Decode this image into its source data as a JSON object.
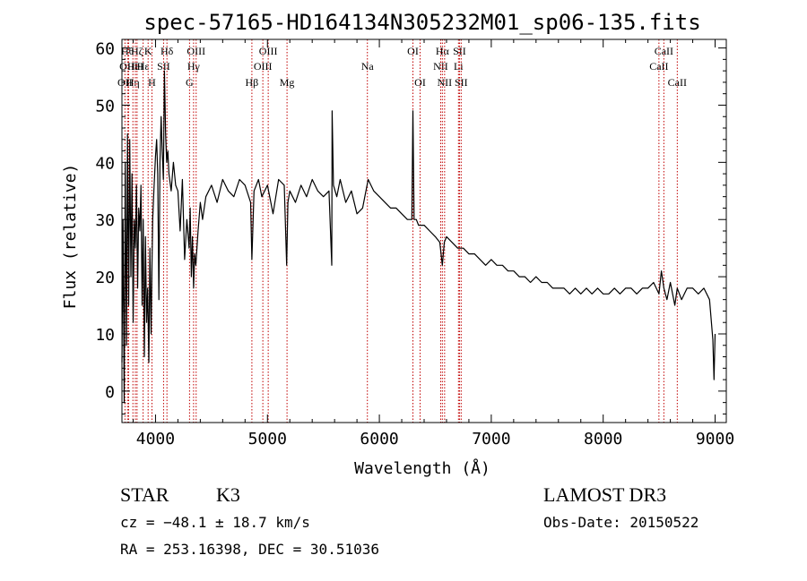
{
  "chart_data": {
    "type": "line",
    "title": "spec-57165-HD164134N305232M01_sp06-135.fits",
    "xlabel": "Wavelength (Å)",
    "ylabel": "Flux (relative)",
    "xlim": [
      3700,
      9100
    ],
    "ylim": [
      -5.5,
      61.5
    ],
    "x_ticks": [
      4000,
      5000,
      6000,
      7000,
      8000,
      9000
    ],
    "x_tick_labels": [
      "4000",
      "5000",
      "6000",
      "7000",
      "8000",
      "9000"
    ],
    "y_ticks": [
      0,
      10,
      20,
      30,
      40,
      50,
      60
    ],
    "y_tick_labels": [
      "0",
      "10",
      "20",
      "30",
      "40",
      "50",
      "60"
    ],
    "grid": false,
    "series": [
      {
        "name": "spectrum",
        "color": "#000000",
        "x": [
          3700,
          3710,
          3720,
          3730,
          3740,
          3750,
          3760,
          3770,
          3780,
          3790,
          3800,
          3810,
          3820,
          3830,
          3840,
          3850,
          3860,
          3870,
          3880,
          3890,
          3900,
          3910,
          3920,
          3930,
          3940,
          3950,
          3960,
          3968,
          3975,
          3985,
          4000,
          4010,
          4020,
          4030,
          4040,
          4050,
          4060,
          4070,
          4080,
          4090,
          4100,
          4110,
          4120,
          4140,
          4160,
          4180,
          4200,
          4220,
          4240,
          4260,
          4280,
          4300,
          4310,
          4320,
          4330,
          4340,
          4350,
          4360,
          4380,
          4400,
          4420,
          4450,
          4500,
          4550,
          4600,
          4650,
          4700,
          4750,
          4800,
          4850,
          4861,
          4880,
          4920,
          4950,
          5000,
          5050,
          5100,
          5150,
          5172,
          5183,
          5200,
          5250,
          5300,
          5350,
          5400,
          5450,
          5500,
          5550,
          5575,
          5578,
          5590,
          5620,
          5650,
          5700,
          5750,
          5800,
          5850,
          5900,
          5950,
          6000,
          6050,
          6100,
          6150,
          6200,
          6250,
          6290,
          6300,
          6310,
          6330,
          6350,
          6400,
          6450,
          6500,
          6540,
          6563,
          6580,
          6600,
          6650,
          6700,
          6750,
          6800,
          6850,
          6900,
          6950,
          7000,
          7050,
          7100,
          7150,
          7200,
          7250,
          7300,
          7350,
          7400,
          7450,
          7500,
          7550,
          7600,
          7650,
          7700,
          7750,
          7800,
          7850,
          7900,
          7950,
          8000,
          8050,
          8100,
          8150,
          8200,
          8250,
          8300,
          8350,
          8400,
          8450,
          8498,
          8520,
          8542,
          8570,
          8600,
          8640,
          8662,
          8700,
          8750,
          8800,
          8850,
          8900,
          8950,
          8980,
          8990,
          9000
        ],
        "y": [
          5,
          30,
          -2,
          40,
          8,
          45,
          15,
          44,
          20,
          38,
          12,
          30,
          25,
          36,
          18,
          32,
          28,
          36,
          15,
          30,
          6,
          27,
          12,
          18,
          5,
          25,
          10,
          22,
          30,
          35,
          41,
          44,
          38,
          16,
          40,
          48,
          42,
          37,
          56,
          45,
          40,
          42,
          38,
          35,
          40,
          36,
          35,
          28,
          37,
          23,
          30,
          25,
          32,
          20,
          27,
          18,
          24,
          22,
          28,
          33,
          30,
          34,
          36,
          33,
          37,
          35,
          34,
          37,
          36,
          33,
          23,
          35,
          37,
          34,
          36,
          31,
          37,
          36,
          22,
          33,
          35,
          33,
          36,
          34,
          37,
          35,
          34,
          35,
          22,
          49,
          36,
          34,
          37,
          33,
          35,
          31,
          32,
          37,
          35,
          34,
          33,
          32,
          32,
          31,
          30,
          30,
          49,
          30,
          30,
          29,
          29,
          28,
          27,
          26,
          22,
          26,
          27,
          26,
          25,
          25,
          24,
          24,
          23,
          22,
          23,
          22,
          22,
          21,
          21,
          20,
          20,
          19,
          20,
          19,
          19,
          18,
          18,
          18,
          17,
          18,
          17,
          18,
          17,
          18,
          17,
          17,
          18,
          17,
          18,
          18,
          17,
          18,
          18,
          19,
          17,
          21,
          18,
          16,
          19,
          15,
          18,
          16,
          18,
          18,
          17,
          18,
          16,
          9,
          2,
          10
        ]
      }
    ],
    "lines": [
      {
        "x": 3727,
        "labels": [
          "OII"
        ],
        "rows": [
          3
        ]
      },
      {
        "x": 3750,
        "labels": [
          "Hθ"
        ],
        "rows": [
          1
        ]
      },
      {
        "x": 3760,
        "labels": [
          "OIII"
        ],
        "rows": [
          2
        ]
      },
      {
        "x": 3798,
        "labels": [
          "Hη"
        ],
        "rows": [
          3
        ]
      },
      {
        "x": 3820,
        "labels": [
          "HeI"
        ],
        "rows": [
          2
        ]
      },
      {
        "x": 3835,
        "labels": [
          "Hζ"
        ],
        "rows": [
          1
        ]
      },
      {
        "x": 3889,
        "labels": [
          "Hε"
        ],
        "rows": [
          2
        ]
      },
      {
        "x": 3934,
        "labels": [
          "K"
        ],
        "rows": [
          1
        ]
      },
      {
        "x": 3968,
        "labels": [
          "H"
        ],
        "rows": [
          3
        ]
      },
      {
        "x": 4072,
        "labels": [
          "SII"
        ],
        "rows": [
          2
        ]
      },
      {
        "x": 4102,
        "labels": [
          "Hδ"
        ],
        "rows": [
          1
        ]
      },
      {
        "x": 4304,
        "labels": [
          "G"
        ],
        "rows": [
          3
        ]
      },
      {
        "x": 4340,
        "labels": [
          "Hγ"
        ],
        "rows": [
          2
        ]
      },
      {
        "x": 4363,
        "labels": [
          "OIII"
        ],
        "rows": [
          1
        ]
      },
      {
        "x": 4861,
        "labels": [
          "Hβ"
        ],
        "rows": [
          3
        ]
      },
      {
        "x": 4959,
        "labels": [
          "OIII"
        ],
        "rows": [
          2
        ]
      },
      {
        "x": 5007,
        "labels": [
          "OIII"
        ],
        "rows": [
          1
        ]
      },
      {
        "x": 5175,
        "labels": [
          "Mg"
        ],
        "rows": [
          3
        ]
      },
      {
        "x": 5893,
        "labels": [
          "Na"
        ],
        "rows": [
          2
        ]
      },
      {
        "x": 6300,
        "labels": [
          "OI"
        ],
        "rows": [
          1
        ]
      },
      {
        "x": 6364,
        "labels": [
          "OI"
        ],
        "rows": [
          3
        ]
      },
      {
        "x": 6548,
        "labels": [
          "NII"
        ],
        "rows": [
          2
        ]
      },
      {
        "x": 6563,
        "labels": [
          "Hα"
        ],
        "rows": [
          1
        ]
      },
      {
        "x": 6583,
        "labels": [
          "NII"
        ],
        "rows": [
          3
        ]
      },
      {
        "x": 6707,
        "labels": [
          "Li"
        ],
        "rows": [
          2
        ]
      },
      {
        "x": 6716,
        "labels": [
          "SII"
        ],
        "rows": [
          1
        ]
      },
      {
        "x": 6731,
        "labels": [
          "SII"
        ],
        "rows": [
          3
        ]
      },
      {
        "x": 8498,
        "labels": [
          "CaII"
        ],
        "rows": [
          2
        ]
      },
      {
        "x": 8542,
        "labels": [
          "CaII"
        ],
        "rows": [
          1
        ]
      },
      {
        "x": 8662,
        "labels": [
          "CaII"
        ],
        "rows": [
          3
        ]
      }
    ],
    "line_color": "#c00000"
  },
  "info": {
    "class": "STAR",
    "subclass": "K3",
    "survey": "LAMOST DR3",
    "cz": "cz = −48.1 ± 18.7 km/s",
    "obs_date": "Obs-Date: 20150522",
    "radec": "RA = 253.16398, DEC =  30.51036"
  }
}
